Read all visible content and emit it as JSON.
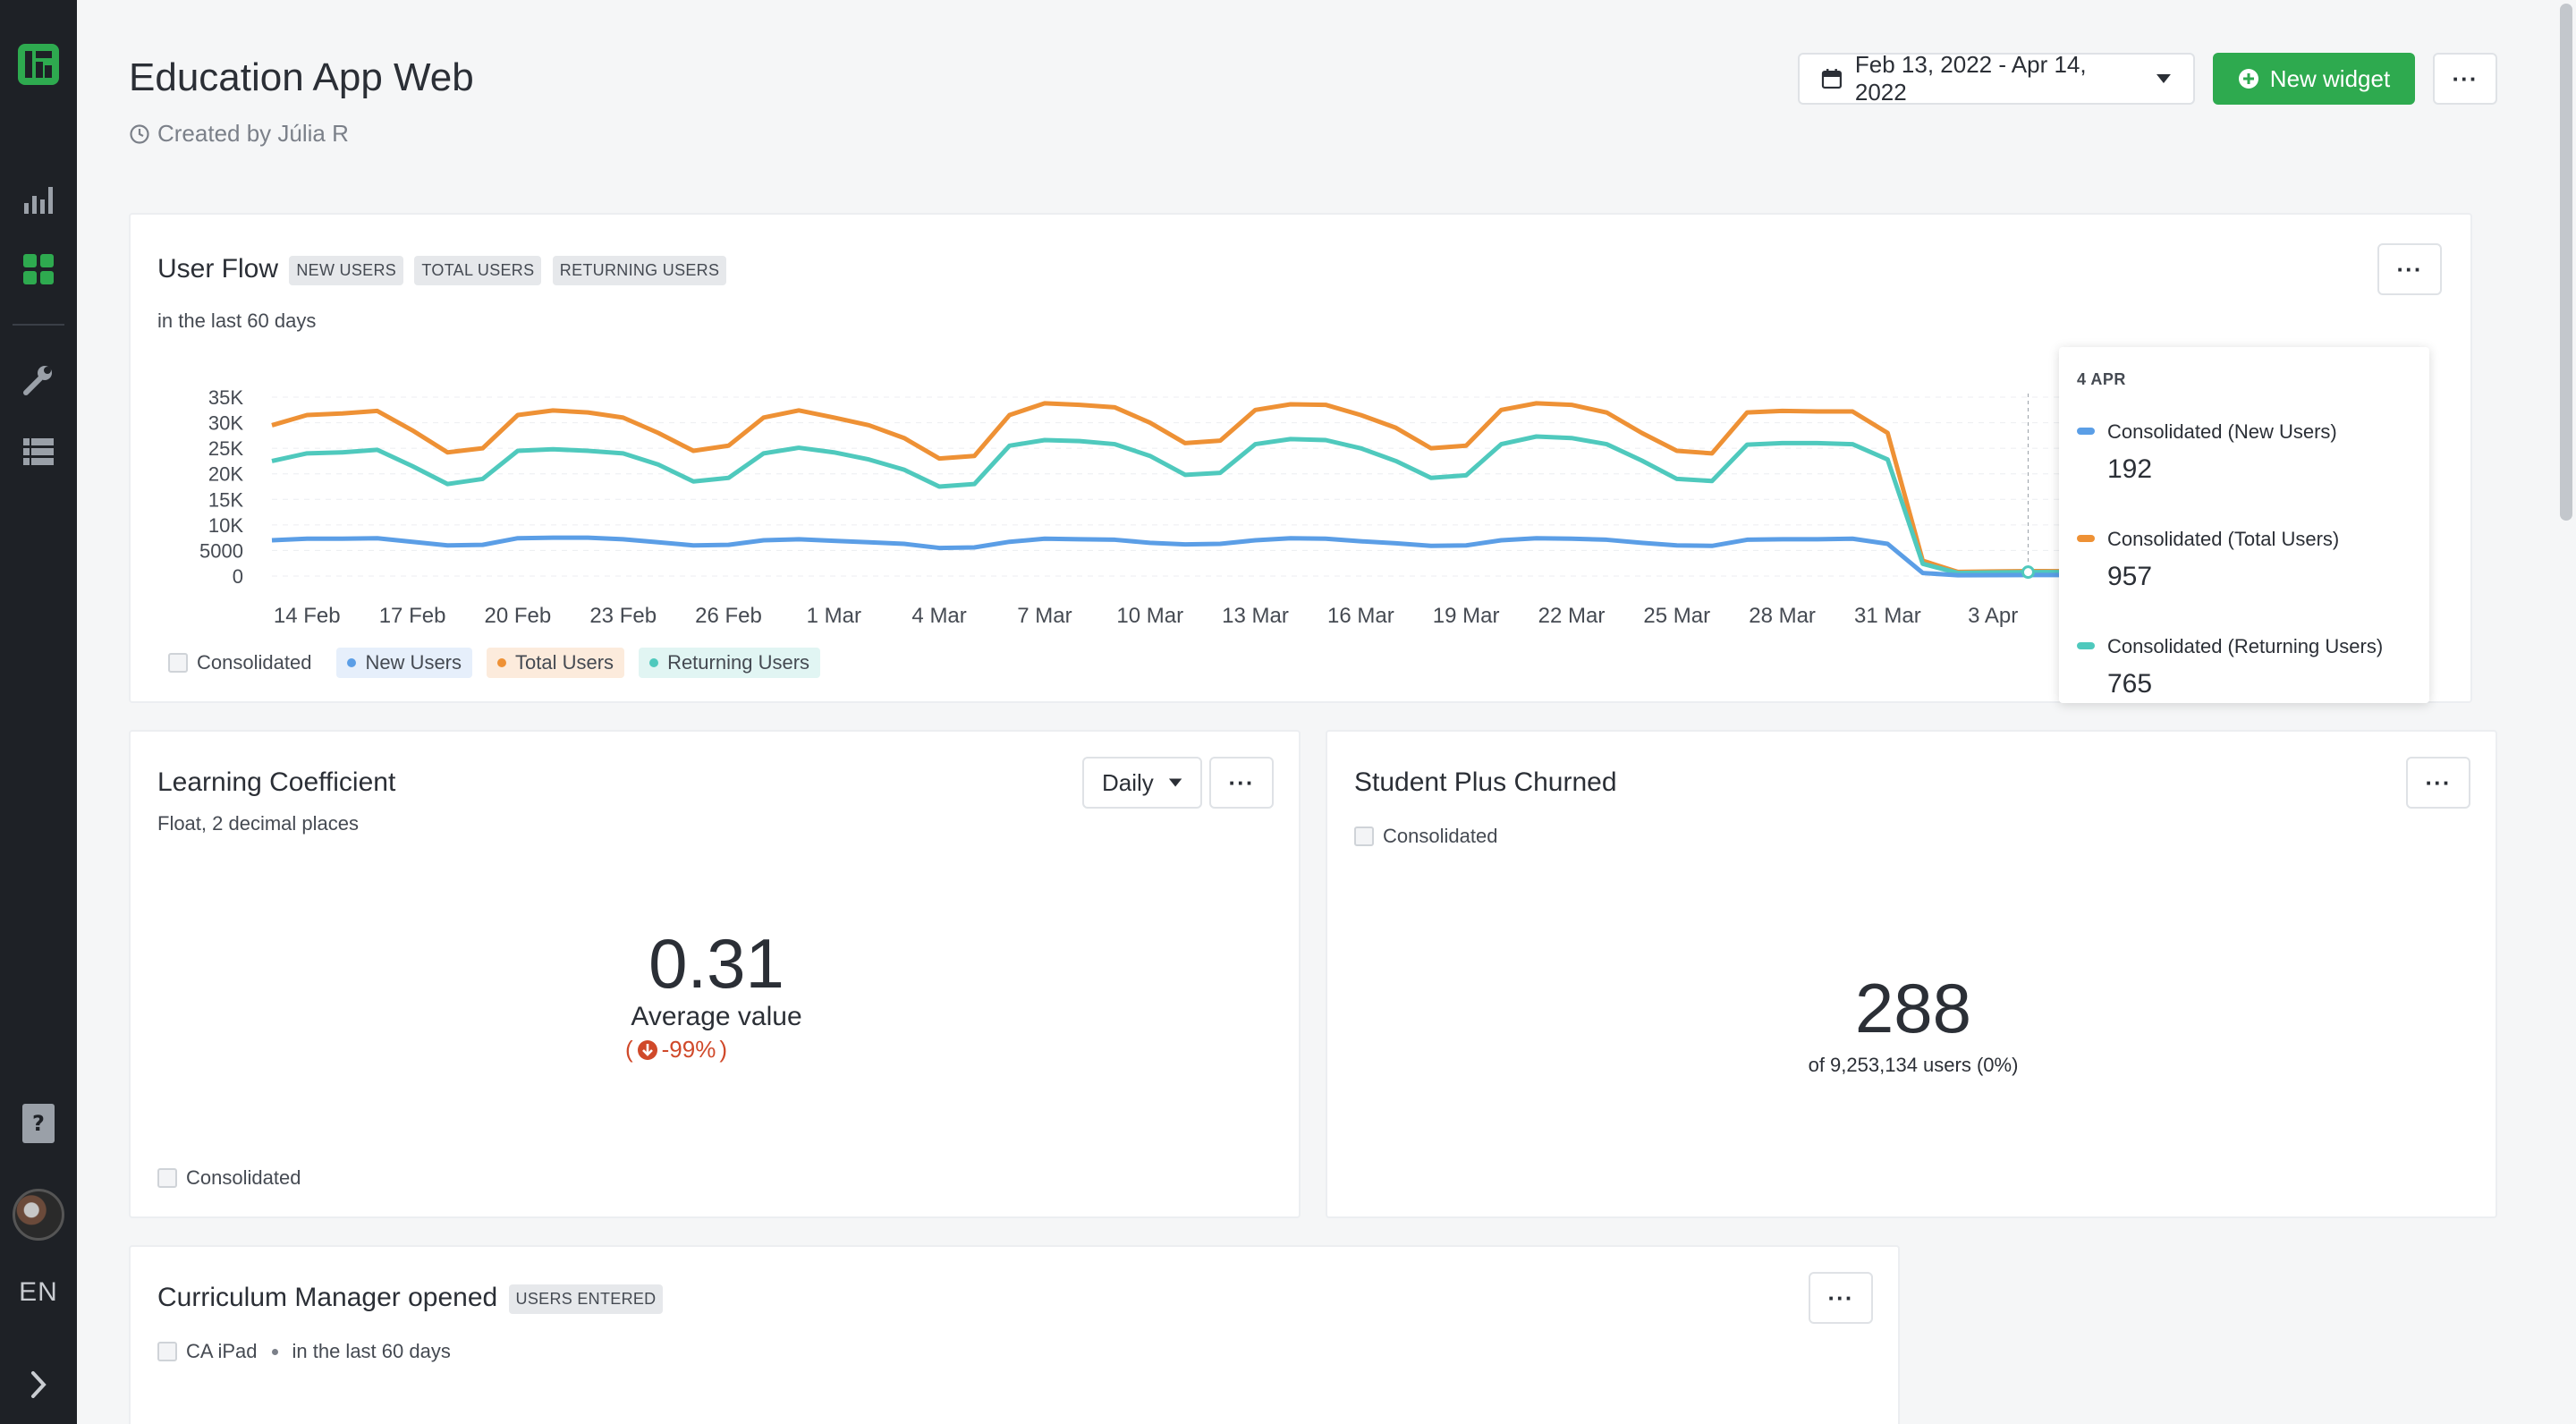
{
  "page": {
    "title": "Education App Web",
    "created_by": "Created by Júlia R"
  },
  "header": {
    "date_range": "Feb 13, 2022 - Apr 14, 2022",
    "new_widget_label": "New widget",
    "more_label": "···"
  },
  "sidebar": {
    "items": [
      {
        "name": "logo-icon"
      },
      {
        "name": "bar-chart-icon"
      },
      {
        "name": "dashboard-grid-icon"
      },
      {
        "name": "wrench-icon"
      },
      {
        "name": "data-table-icon"
      },
      {
        "name": "help-icon"
      },
      {
        "name": "avatar"
      }
    ],
    "lang": "EN",
    "expand_icon": "chevron-right-icon"
  },
  "user_flow": {
    "title": "User Flow",
    "tags": [
      "NEW USERS",
      "TOTAL USERS",
      "RETURNING USERS"
    ],
    "subtitle": "in the last 60 days",
    "legend": {
      "consolidated": "Consolidated",
      "new_users": "New Users",
      "total_users": "Total Users",
      "returning_users": "Returning Users"
    },
    "tooltip": {
      "date": "4 APR",
      "items": [
        {
          "label": "Consolidated (New Users)",
          "value": "192",
          "color": "#5b9ee6"
        },
        {
          "label": "Consolidated (Total Users)",
          "value": "957",
          "color": "#ee9135"
        },
        {
          "label": "Consolidated (Returning Users)",
          "value": "765",
          "color": "#4fc9bd"
        }
      ]
    }
  },
  "chart_data": {
    "type": "line",
    "y_ticks": [
      "35K",
      "30K",
      "25K",
      "20K",
      "15K",
      "10K",
      "5000",
      "0"
    ],
    "x_ticks": [
      "14 Feb",
      "17 Feb",
      "20 Feb",
      "23 Feb",
      "26 Feb",
      "1 Mar",
      "4 Mar",
      "7 Mar",
      "10 Mar",
      "13 Mar",
      "16 Mar",
      "19 Mar",
      "22 Mar",
      "25 Mar",
      "28 Mar",
      "31 Mar",
      "3 Apr"
    ],
    "ylim": [
      0,
      35000
    ],
    "x": [
      "13 Feb",
      "14 Feb",
      "15 Feb",
      "16 Feb",
      "17 Feb",
      "18 Feb",
      "19 Feb",
      "20 Feb",
      "21 Feb",
      "22 Feb",
      "23 Feb",
      "24 Feb",
      "25 Feb",
      "26 Feb",
      "27 Feb",
      "28 Feb",
      "1 Mar",
      "2 Mar",
      "3 Mar",
      "4 Mar",
      "5 Mar",
      "6 Mar",
      "7 Mar",
      "8 Mar",
      "9 Mar",
      "10 Mar",
      "11 Mar",
      "12 Mar",
      "13 Mar",
      "14 Mar",
      "15 Mar",
      "16 Mar",
      "17 Mar",
      "18 Mar",
      "19 Mar",
      "20 Mar",
      "21 Mar",
      "22 Mar",
      "23 Mar",
      "24 Mar",
      "25 Mar",
      "26 Mar",
      "27 Mar",
      "28 Mar",
      "29 Mar",
      "30 Mar",
      "31 Mar",
      "1 Apr",
      "2 Apr",
      "3 Apr",
      "4 Apr",
      "5 Apr",
      "6 Apr"
    ],
    "series": [
      {
        "name": "Total Users",
        "color": "#ee9135",
        "values": [
          29500,
          31500,
          31800,
          32300,
          28500,
          24200,
          25000,
          31500,
          32400,
          32000,
          31000,
          28000,
          24500,
          25500,
          31000,
          32400,
          31000,
          29500,
          27000,
          23000,
          23500,
          31500,
          33800,
          33500,
          33000,
          30000,
          26000,
          26500,
          32500,
          33600,
          33500,
          31500,
          29000,
          25000,
          25500,
          32500,
          33800,
          33500,
          32000,
          28000,
          24500,
          24000,
          32000,
          32300,
          32200,
          32200,
          28000,
          3000,
          800,
          900,
          957,
          950,
          950
        ]
      },
      {
        "name": "Returning Users",
        "color": "#4fc9bd",
        "values": [
          22500,
          24000,
          24200,
          24700,
          21500,
          18000,
          19000,
          24500,
          24800,
          24500,
          24000,
          21800,
          18500,
          19200,
          24000,
          25100,
          24200,
          22800,
          20800,
          17500,
          18000,
          25500,
          26600,
          26400,
          25800,
          23500,
          19800,
          20200,
          25800,
          26800,
          26600,
          25000,
          22500,
          19200,
          19700,
          25800,
          27300,
          27000,
          25800,
          22600,
          19000,
          18600,
          25700,
          26000,
          26000,
          25800,
          22800,
          2400,
          600,
          700,
          765,
          760,
          760
        ]
      },
      {
        "name": "New Users",
        "color": "#5b9ee6",
        "values": [
          7000,
          7300,
          7300,
          7400,
          6700,
          6000,
          6100,
          7400,
          7500,
          7500,
          7200,
          6600,
          6000,
          6100,
          7000,
          7200,
          6900,
          6600,
          6300,
          5500,
          5600,
          6700,
          7300,
          7200,
          7100,
          6500,
          6200,
          6300,
          7000,
          7400,
          7300,
          6800,
          6400,
          5900,
          6000,
          7000,
          7400,
          7300,
          7100,
          6500,
          6000,
          5900,
          7100,
          7200,
          7200,
          7300,
          6300,
          600,
          150,
          170,
          192,
          190,
          190
        ]
      }
    ]
  },
  "learning_coefficient": {
    "title": "Learning Coefficient",
    "subtitle": "Float, 2 decimal places",
    "period": "Daily",
    "value": "0.31",
    "caption": "Average value",
    "change": "-99%",
    "legend": "Consolidated"
  },
  "student_plus_churned": {
    "title": "Student Plus Churned",
    "legend": "Consolidated",
    "value": "288",
    "caption": "of 9,253,134 users (0%)"
  },
  "curriculum_manager": {
    "title": "Curriculum Manager opened",
    "tag": "USERS ENTERED",
    "platform": "CA iPad",
    "period": "in the last 60 days"
  }
}
